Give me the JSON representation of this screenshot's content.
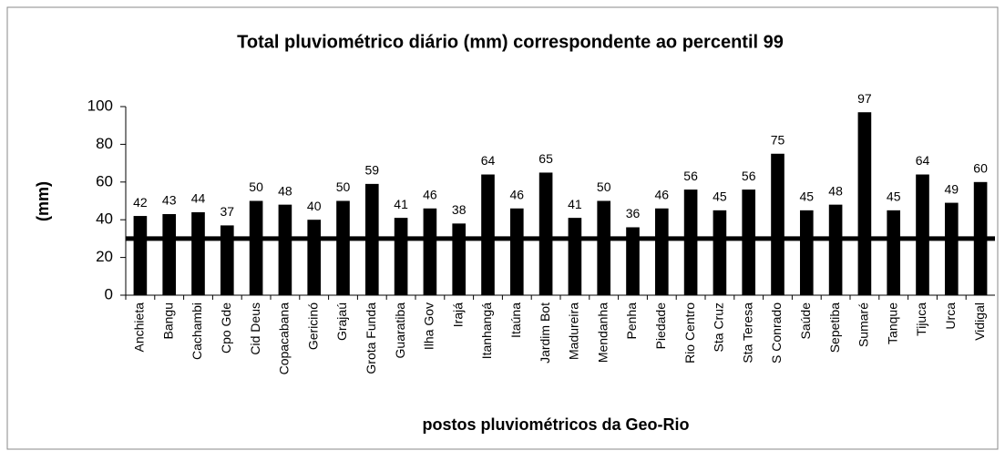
{
  "chart_data": {
    "type": "bar",
    "title": "Total pluviométrico diário (mm) correspondente ao percentil 99",
    "y_label": "(mm)",
    "x_label": "postos pluviométricos da Geo-Rio",
    "categories": [
      "Anchieta",
      "Bangu",
      "Cachambi",
      "Cpo Gde",
      "Cid Deus",
      "Copacabana",
      "Gericinó",
      "Grajaú",
      "Grota Funda",
      "Guaratiba",
      "Ilha Gov",
      "Irajá",
      "Itanhangá",
      "Itaúna",
      "Jardim Bot",
      "Madureira",
      "Mendanha",
      "Penha",
      "Piedade",
      "Rio Centro",
      "Sta Cruz",
      "Sta Teresa",
      "S Conrado",
      "Saúde",
      "Sepetiba",
      "Sumaré",
      "Tanque",
      "Tijuca",
      "Urca",
      "Vidigal"
    ],
    "values": [
      42,
      43,
      44,
      37,
      50,
      48,
      40,
      50,
      59,
      41,
      46,
      38,
      64,
      46,
      65,
      41,
      50,
      36,
      46,
      56,
      45,
      56,
      75,
      45,
      48,
      97,
      45,
      64,
      49,
      60
    ],
    "color": "#000000",
    "reference_line": 30,
    "ylim": [
      0,
      100
    ],
    "yticks": [
      0,
      20,
      40,
      60,
      80,
      100
    ],
    "grid": false
  }
}
